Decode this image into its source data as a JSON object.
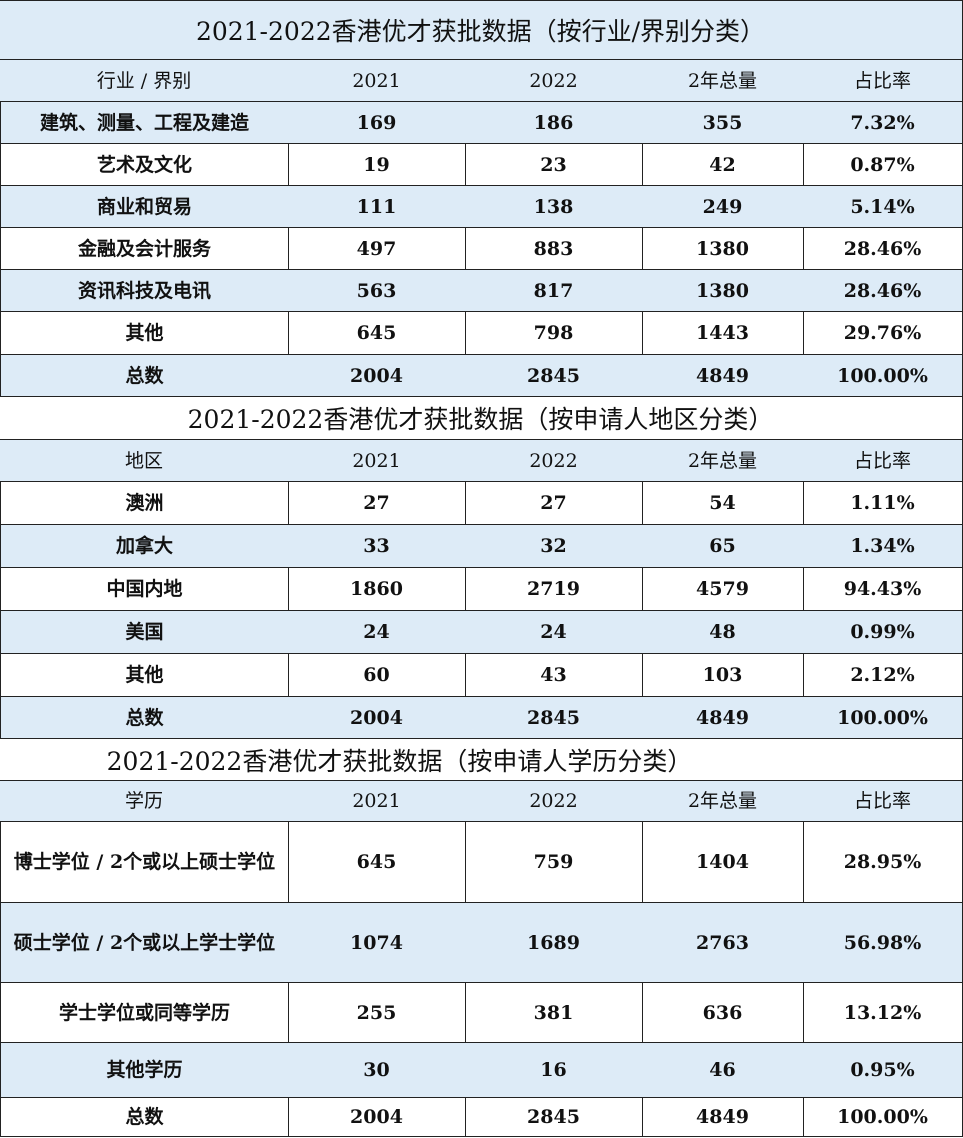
{
  "sections": [
    {
      "title": "2021-2022香港优才获批数据（按行业/界别分类）",
      "header": [
        "行业 / 界别",
        "2021",
        "2022",
        "2年总量",
        "占比率"
      ],
      "rows": [
        [
          "建筑、测量、工程及建造",
          "169",
          "186",
          "355",
          "7.32%"
        ],
        [
          "艺术及文化",
          "19",
          "23",
          "42",
          "0.87%"
        ],
        [
          "商业和贸易",
          "111",
          "138",
          "249",
          "5.14%"
        ],
        [
          "金融及会计服务",
          "497",
          "883",
          "1380",
          "28.46%"
        ],
        [
          "资讯科技及电讯",
          "563",
          "817",
          "1380",
          "28.46%"
        ],
        [
          "其他",
          "645",
          "798",
          "1443",
          "29.76%"
        ],
        [
          "总数",
          "2004",
          "2845",
          "4849",
          "100.00%"
        ]
      ]
    },
    {
      "title": "2021-2022香港优才获批数据（按申请人地区分类）",
      "header": [
        "地区",
        "2021",
        "2022",
        "2年总量",
        "占比率"
      ],
      "rows": [
        [
          "澳洲",
          "27",
          "27",
          "54",
          "1.11%"
        ],
        [
          "加拿大",
          "33",
          "32",
          "65",
          "1.34%"
        ],
        [
          "中国内地",
          "1860",
          "2719",
          "4579",
          "94.43%"
        ],
        [
          "美国",
          "24",
          "24",
          "48",
          "0.99%"
        ],
        [
          "其他",
          "60",
          "43",
          "103",
          "2.12%"
        ],
        [
          "总数",
          "2004",
          "2845",
          "4849",
          "100.00%"
        ]
      ]
    },
    {
      "title": "2021-2022香港优才获批数据（按申请人学历分类）",
      "header": [
        "学历",
        "2021",
        "2022",
        "2年总量",
        "占比率"
      ],
      "rows": [
        [
          "博士学位 / 2个或以上硕士学位",
          "645",
          "759",
          "1404",
          "28.95%"
        ],
        [
          "硕士学位 / 2个或以上学士学位",
          "1074",
          "1689",
          "2763",
          "56.98%"
        ],
        [
          "学士学位或同等学历",
          "255",
          "381",
          "636",
          "13.12%"
        ],
        [
          "其他学历",
          "30",
          "16",
          "46",
          "0.95%"
        ],
        [
          "总数",
          "2004",
          "2845",
          "4849",
          "100.00%"
        ]
      ]
    }
  ]
}
